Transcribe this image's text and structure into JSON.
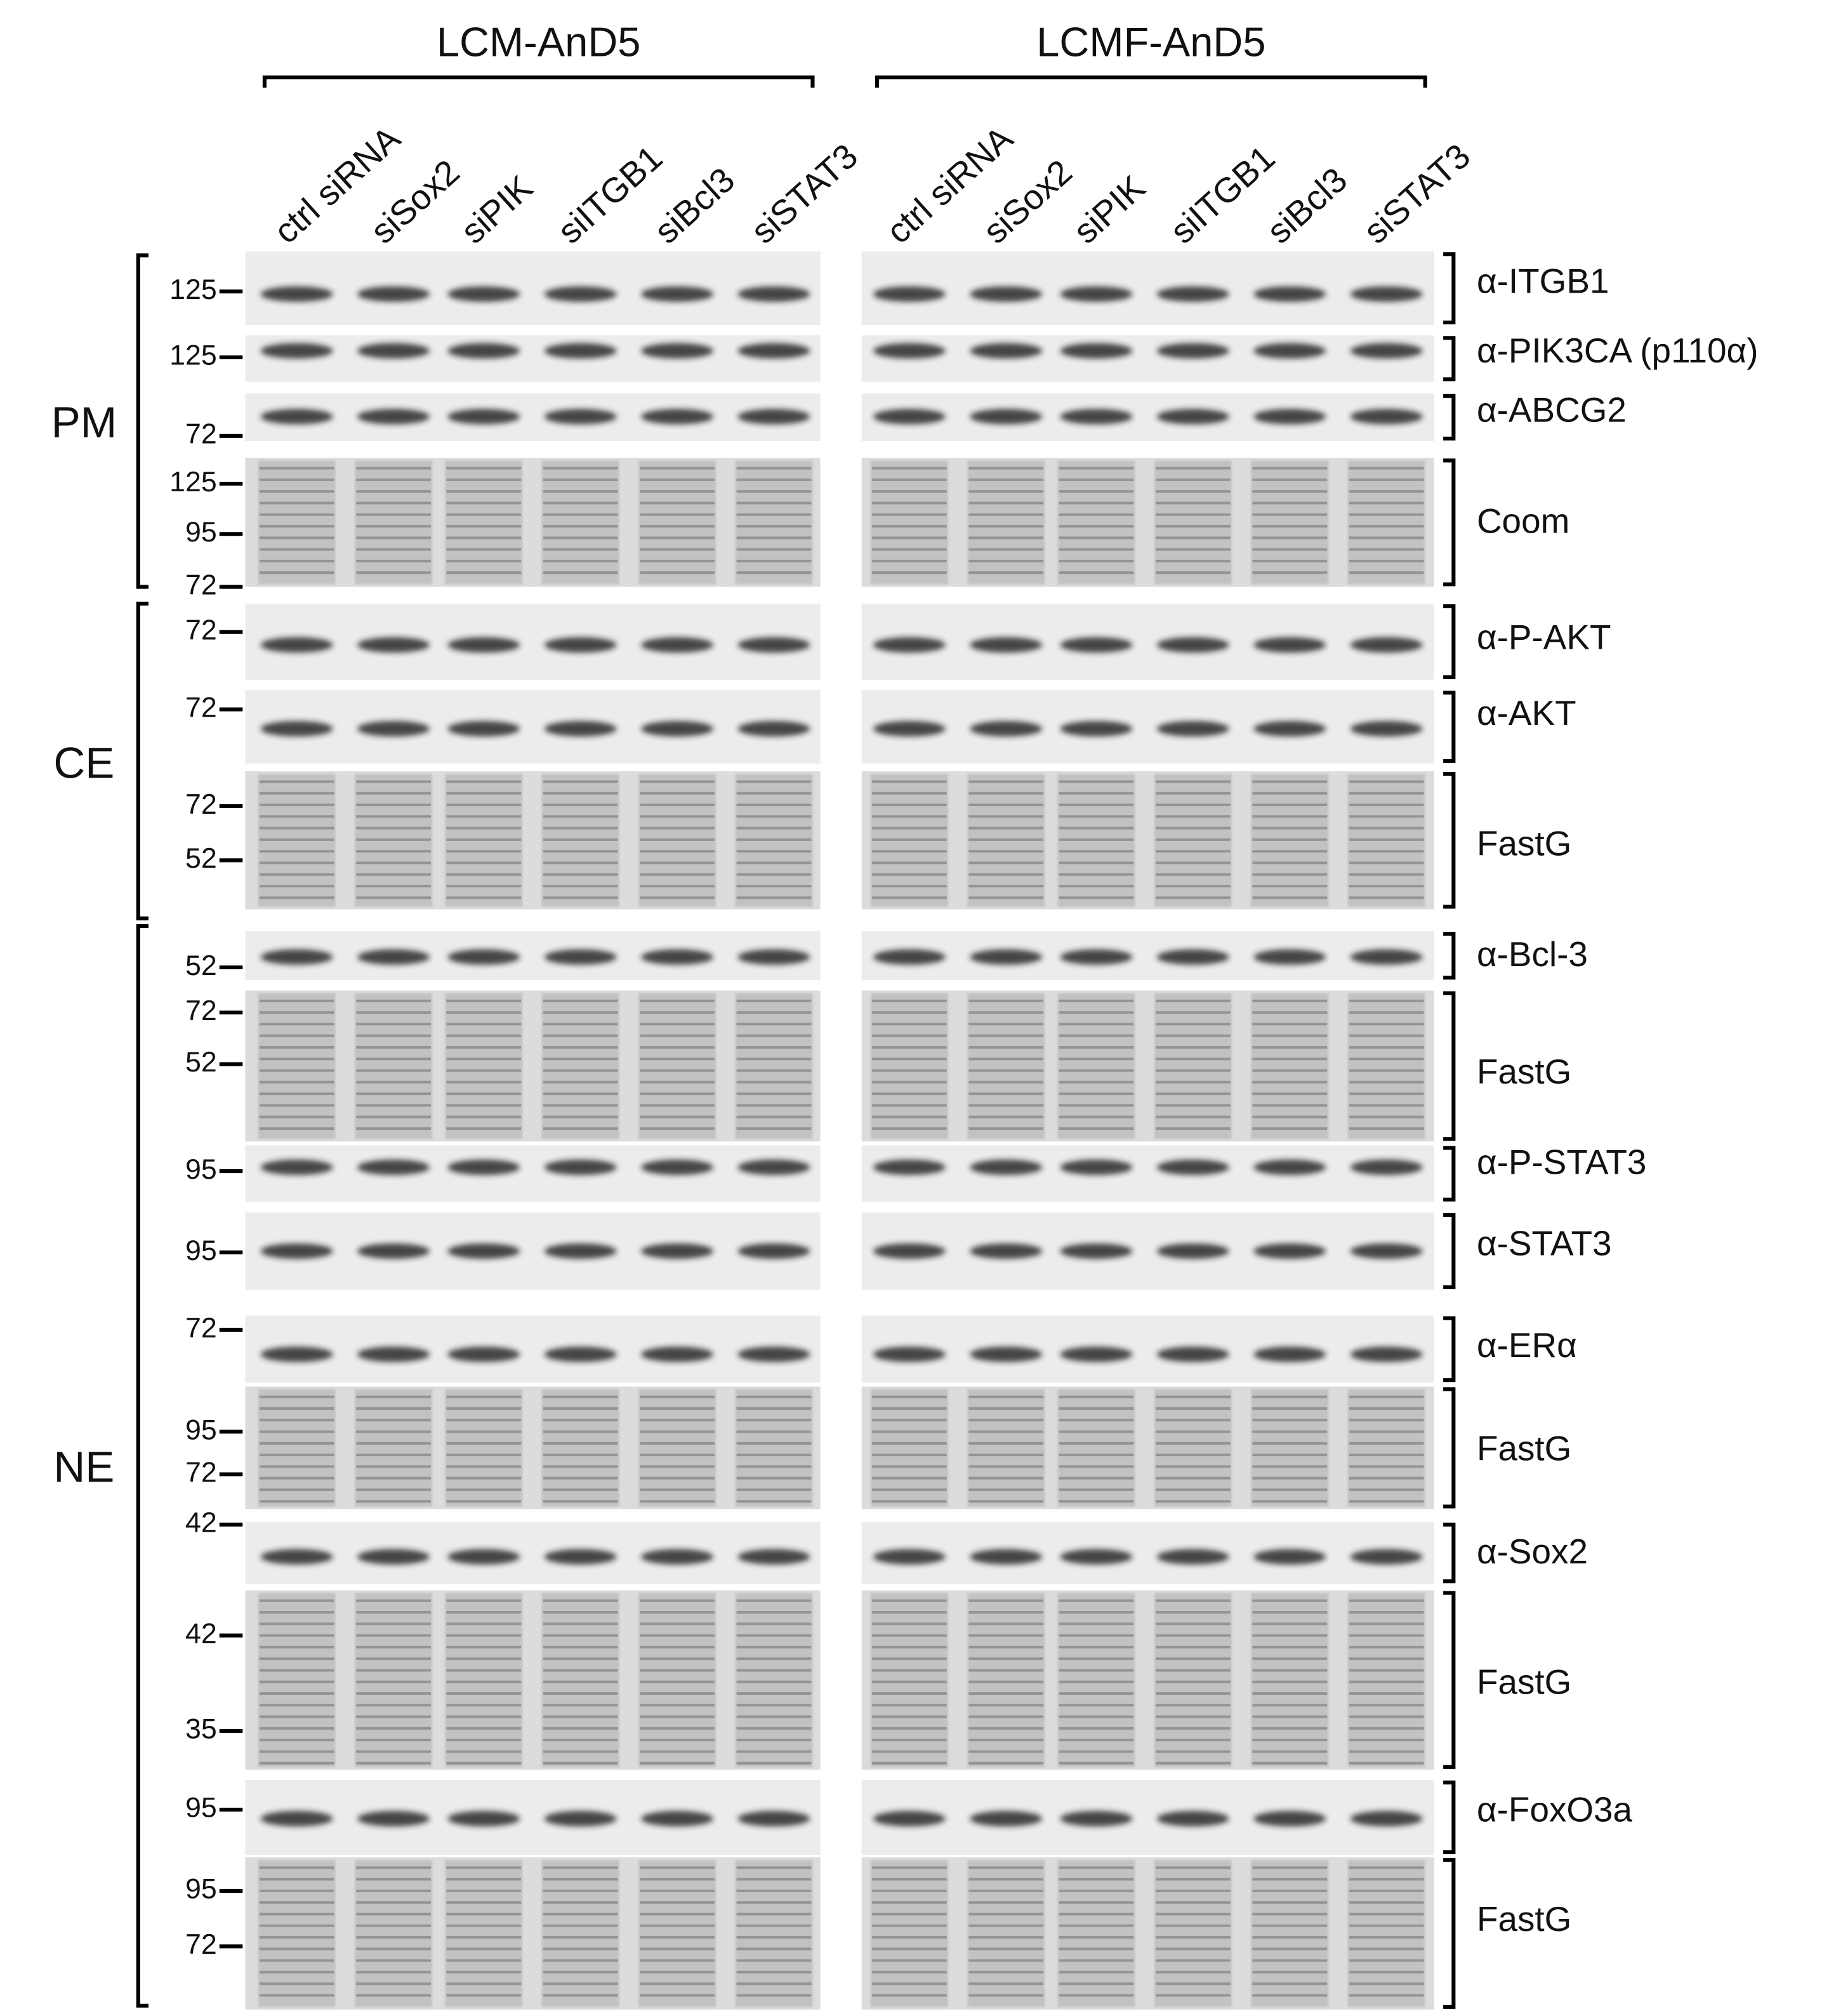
{
  "header": {
    "groups": [
      {
        "title": "LCM-AnD5",
        "lanes": [
          "ctrl siRNA",
          "siSox2",
          "siPIK",
          "siITGB1",
          "siBcl3",
          "siSTAT3"
        ]
      },
      {
        "title": "LCMF-AnD5",
        "lanes": [
          "ctrl siRNA",
          "siSox2",
          "siPIK",
          "siITGB1",
          "siBcl3",
          "siSTAT3"
        ]
      }
    ]
  },
  "sections": [
    {
      "label": "PM",
      "rows": [
        {
          "label": "α-ITGB1",
          "markers": [
            125
          ]
        },
        {
          "label": "α-PIK3CA (p110α)",
          "markers": [
            125
          ]
        },
        {
          "label": "α-ABCG2",
          "markers": [
            72
          ]
        },
        {
          "label": "Coom",
          "markers": [
            125,
            95,
            72
          ]
        }
      ]
    },
    {
      "label": "CE",
      "rows": [
        {
          "label": "α-P-AKT",
          "markers": [
            72
          ]
        },
        {
          "label": "α-AKT",
          "markers": [
            72
          ]
        },
        {
          "label": "FastG",
          "markers": [
            72,
            52
          ]
        }
      ]
    },
    {
      "label": "NE",
      "rows": [
        {
          "label": "α-Bcl-3",
          "markers": [
            52
          ]
        },
        {
          "label": "FastG",
          "markers": [
            72,
            52
          ]
        },
        {
          "label": "α-P-STAT3",
          "markers": [
            95
          ]
        },
        {
          "label": "α-STAT3",
          "markers": [
            95
          ]
        },
        {
          "label": "α-ERα",
          "markers": [
            72
          ]
        },
        {
          "label": "FastG",
          "markers": [
            95,
            72
          ]
        },
        {
          "label": "α-Sox2",
          "markers": [
            42
          ]
        },
        {
          "label": "FastG",
          "markers": [
            42,
            35
          ]
        },
        {
          "label": "α-FoxO3a",
          "markers": [
            95
          ]
        },
        {
          "label": "FastG",
          "markers": [
            95,
            72
          ]
        }
      ]
    }
  ]
}
